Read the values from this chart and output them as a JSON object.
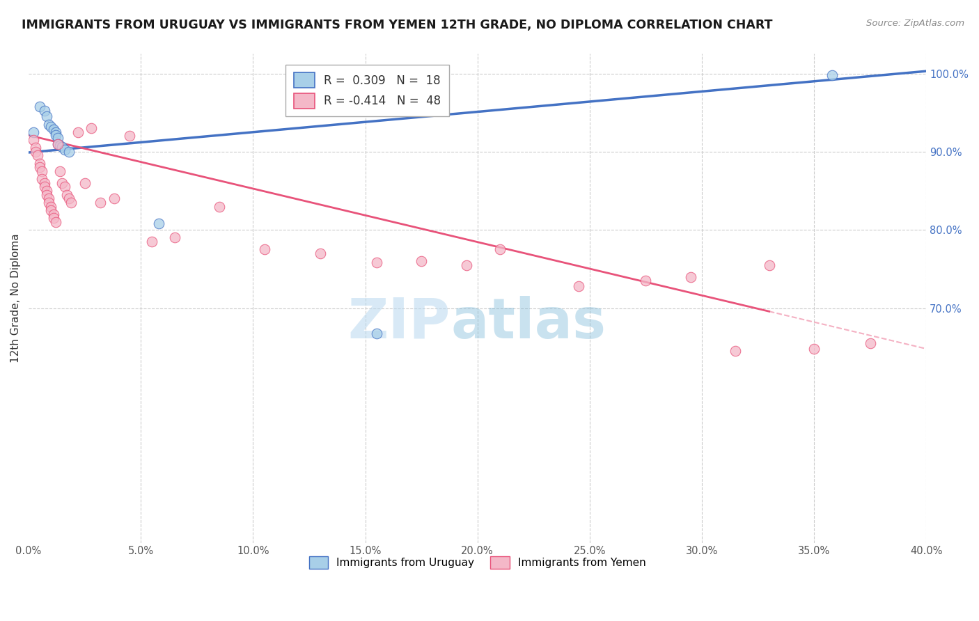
{
  "title": "IMMIGRANTS FROM URUGUAY VS IMMIGRANTS FROM YEMEN 12TH GRADE, NO DIPLOMA CORRELATION CHART",
  "source": "Source: ZipAtlas.com",
  "ylabel": "12th Grade, No Diploma",
  "watermark_zip": "ZIP",
  "watermark_atlas": "atlas",
  "xlim": [
    0.0,
    0.4
  ],
  "ylim": [
    0.4,
    1.025
  ],
  "yticks": [
    0.7,
    0.8,
    0.9,
    1.0
  ],
  "ytick_labels": [
    "70.0%",
    "80.0%",
    "90.0%",
    "100.0%"
  ],
  "xticks": [
    0.0,
    0.05,
    0.1,
    0.15,
    0.2,
    0.25,
    0.3,
    0.35,
    0.4
  ],
  "xtick_labels": [
    "0.0%",
    "5.0%",
    "10.0%",
    "15.0%",
    "20.0%",
    "25.0%",
    "30.0%",
    "35.0%",
    "40.0%"
  ],
  "legend_r_uruguay": "0.309",
  "legend_n_uruguay": "18",
  "legend_r_yemen": "-0.414",
  "legend_n_yemen": "48",
  "color_uruguay": "#a8cfe8",
  "color_yemen": "#f4b8c8",
  "color_trendline_uruguay": "#4472c4",
  "color_trendline_yemen": "#e8537a",
  "color_axis_right": "#4472c4",
  "uruguay_x": [
    0.002,
    0.005,
    0.007,
    0.008,
    0.009,
    0.01,
    0.011,
    0.012,
    0.012,
    0.013,
    0.013,
    0.014,
    0.015,
    0.016,
    0.018,
    0.058,
    0.155,
    0.358
  ],
  "uruguay_y": [
    0.925,
    0.958,
    0.952,
    0.945,
    0.935,
    0.932,
    0.928,
    0.925,
    0.921,
    0.918,
    0.91,
    0.908,
    0.906,
    0.903,
    0.9,
    0.808,
    0.668,
    0.998
  ],
  "yemen_x": [
    0.002,
    0.003,
    0.003,
    0.004,
    0.005,
    0.005,
    0.006,
    0.006,
    0.007,
    0.007,
    0.008,
    0.008,
    0.009,
    0.009,
    0.01,
    0.01,
    0.011,
    0.011,
    0.012,
    0.013,
    0.014,
    0.015,
    0.016,
    0.017,
    0.018,
    0.019,
    0.022,
    0.025,
    0.028,
    0.032,
    0.038,
    0.045,
    0.055,
    0.065,
    0.085,
    0.105,
    0.13,
    0.155,
    0.175,
    0.195,
    0.21,
    0.245,
    0.275,
    0.295,
    0.315,
    0.33,
    0.35,
    0.375
  ],
  "yemen_y": [
    0.915,
    0.905,
    0.9,
    0.895,
    0.885,
    0.88,
    0.875,
    0.865,
    0.86,
    0.855,
    0.85,
    0.845,
    0.84,
    0.835,
    0.83,
    0.825,
    0.82,
    0.815,
    0.81,
    0.91,
    0.875,
    0.86,
    0.855,
    0.845,
    0.84,
    0.835,
    0.925,
    0.86,
    0.93,
    0.835,
    0.84,
    0.92,
    0.785,
    0.79,
    0.83,
    0.775,
    0.77,
    0.758,
    0.76,
    0.755,
    0.775,
    0.728,
    0.735,
    0.74,
    0.645,
    0.755,
    0.648,
    0.655
  ],
  "trendline_uruguay_x0": 0.0,
  "trendline_uruguay_y0": 0.899,
  "trendline_uruguay_x1": 0.4,
  "trendline_uruguay_y1": 1.003,
  "trendline_yemen_x0": 0.0,
  "trendline_yemen_y0": 0.921,
  "trendline_yemen_x1": 0.4,
  "trendline_yemen_y1": 0.648,
  "trendline_yemen_solid_end": 0.33
}
